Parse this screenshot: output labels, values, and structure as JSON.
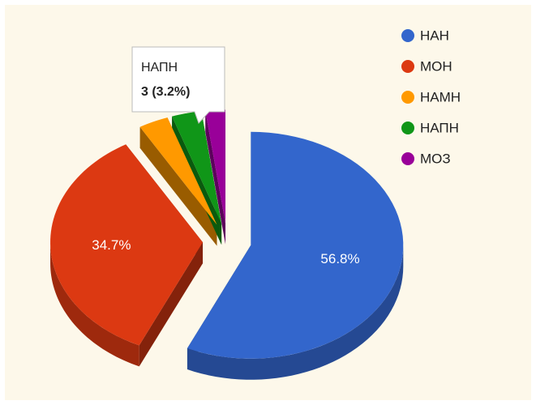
{
  "chart_data": {
    "type": "pie3d",
    "categories": [
      "НАН",
      "МОН",
      "НАМН",
      "НАПН",
      "МОЗ"
    ],
    "values": [
      54,
      33,
      3,
      3,
      2
    ],
    "value_labels": [
      "56.8%",
      "34.7%",
      null,
      null,
      null
    ],
    "colors": [
      "#3366cc",
      "#dc3912",
      "#ff9900",
      "#109618",
      "#990099"
    ],
    "legend": "right",
    "tooltip": {
      "title": "НАПН",
      "text": "3 (3.2%)"
    }
  }
}
